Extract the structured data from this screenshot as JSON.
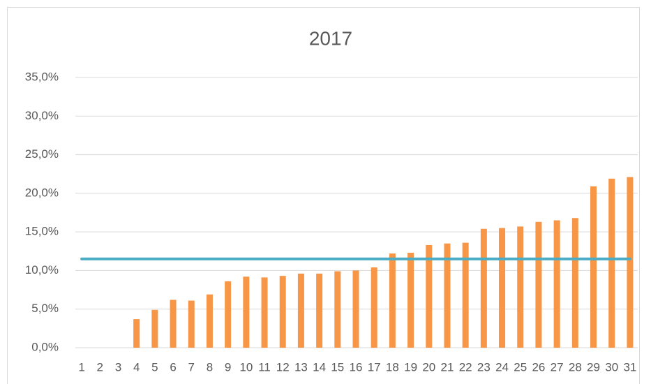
{
  "chart_data": {
    "type": "bar",
    "title": "2017",
    "categories": [
      "1",
      "2",
      "3",
      "4",
      "5",
      "6",
      "7",
      "8",
      "9",
      "10",
      "11",
      "12",
      "13",
      "14",
      "15",
      "16",
      "17",
      "18",
      "19",
      "20",
      "21",
      "22",
      "23",
      "24",
      "25",
      "26",
      "27",
      "28",
      "29",
      "30",
      "31"
    ],
    "series": [
      {
        "type": "bar",
        "color": "#f79646",
        "values": [
          0,
          0,
          0,
          3.7,
          4.9,
          6.2,
          6.1,
          6.9,
          8.6,
          9.2,
          9.1,
          9.3,
          9.6,
          9.6,
          9.9,
          10.0,
          10.4,
          12.2,
          12.3,
          13.3,
          13.5,
          13.6,
          15.4,
          15.5,
          15.7,
          16.3,
          16.5,
          16.8,
          20.9,
          21.9,
          22.1
        ]
      },
      {
        "type": "line",
        "color": "#4bacc6",
        "values": [
          11.5,
          11.5,
          11.5,
          11.5,
          11.5,
          11.5,
          11.5,
          11.5,
          11.5,
          11.5,
          11.5,
          11.5,
          11.5,
          11.5,
          11.5,
          11.5,
          11.5,
          11.5,
          11.5,
          11.5,
          11.5,
          11.5,
          11.5,
          11.5,
          11.5,
          11.5,
          11.5,
          11.5,
          11.5,
          11.5,
          11.5
        ]
      }
    ],
    "ylim": [
      0,
      35
    ],
    "yticks": [
      {
        "value": 0,
        "label": "0,0%"
      },
      {
        "value": 5,
        "label": "5,0%"
      },
      {
        "value": 10,
        "label": "10,0%"
      },
      {
        "value": 15,
        "label": "15,0%"
      },
      {
        "value": 20,
        "label": "20,0%"
      },
      {
        "value": 25,
        "label": "25,0%"
      },
      {
        "value": 30,
        "label": "30,0%"
      },
      {
        "value": 35,
        "label": "35,0%"
      }
    ],
    "grid": true
  }
}
